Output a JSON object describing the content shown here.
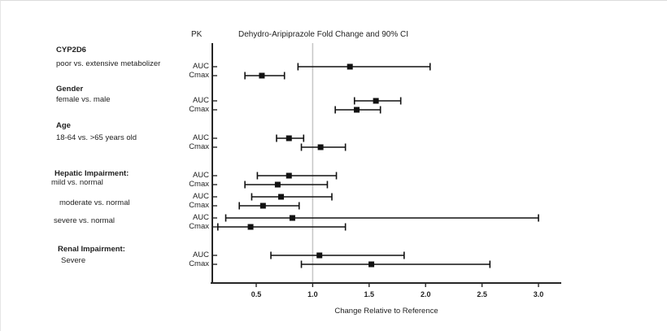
{
  "chart_data": {
    "type": "forest",
    "title": "Dehydro-Aripiprazole Fold Change and 90% CI",
    "pk_column_header": "PK",
    "xlabel": "Change Relative to Reference",
    "x_ticks": [
      0.5,
      1.0,
      1.5,
      2.0,
      2.5,
      3.0
    ],
    "xlim": [
      0.1,
      3.2
    ],
    "reference_line": 1.0,
    "grid": false,
    "legend": "none",
    "marker": "filled-square",
    "colors": {
      "line": "#262626",
      "marker": "#111111",
      "reference": "#c6c6c6",
      "text": "#1f1f1f"
    },
    "sections": [
      {
        "heading": "CYP2D6",
        "subgroups": [
          {
            "label": "poor vs. extensive metabolizer",
            "rows": [
              {
                "pk": "AUC",
                "est": 1.33,
                "lo": 0.87,
                "hi": 2.04
              },
              {
                "pk": "Cmax",
                "est": 0.55,
                "lo": 0.4,
                "hi": 0.75
              }
            ]
          }
        ]
      },
      {
        "heading": "Gender",
        "subgroups": [
          {
            "label": "female vs. male",
            "rows": [
              {
                "pk": "AUC",
                "est": 1.56,
                "lo": 1.37,
                "hi": 1.78
              },
              {
                "pk": "Cmax",
                "est": 1.39,
                "lo": 1.2,
                "hi": 1.6
              }
            ]
          }
        ]
      },
      {
        "heading": "Age",
        "subgroups": [
          {
            "label": "18-64 vs. >65 years old",
            "rows": [
              {
                "pk": "AUC",
                "est": 0.79,
                "lo": 0.68,
                "hi": 0.92
              },
              {
                "pk": "Cmax",
                "est": 1.07,
                "lo": 0.9,
                "hi": 1.29
              }
            ]
          }
        ]
      },
      {
        "heading": "Hepatic Impairment:",
        "subgroups": [
          {
            "label": "mild vs. normal",
            "rows": [
              {
                "pk": "AUC",
                "est": 0.79,
                "lo": 0.51,
                "hi": 1.21
              },
              {
                "pk": "Cmax",
                "est": 0.69,
                "lo": 0.4,
                "hi": 1.13
              }
            ]
          },
          {
            "label": "moderate vs. normal",
            "rows": [
              {
                "pk": "AUC",
                "est": 0.72,
                "lo": 0.46,
                "hi": 1.17
              },
              {
                "pk": "Cmax",
                "est": 0.56,
                "lo": 0.35,
                "hi": 0.88
              }
            ]
          },
          {
            "label": "severe vs. normal",
            "rows": [
              {
                "pk": "AUC",
                "est": 0.82,
                "lo": 0.23,
                "hi": 3.0
              },
              {
                "pk": "Cmax",
                "est": 0.45,
                "lo": 0.16,
                "hi": 1.29
              }
            ]
          }
        ]
      },
      {
        "heading": "Renal Impairment:",
        "subgroups": [
          {
            "label": "Severe",
            "rows": [
              {
                "pk": "AUC",
                "est": 1.06,
                "lo": 0.63,
                "hi": 1.81
              },
              {
                "pk": "Cmax",
                "est": 1.52,
                "lo": 0.9,
                "hi": 2.57
              }
            ]
          }
        ]
      }
    ]
  }
}
